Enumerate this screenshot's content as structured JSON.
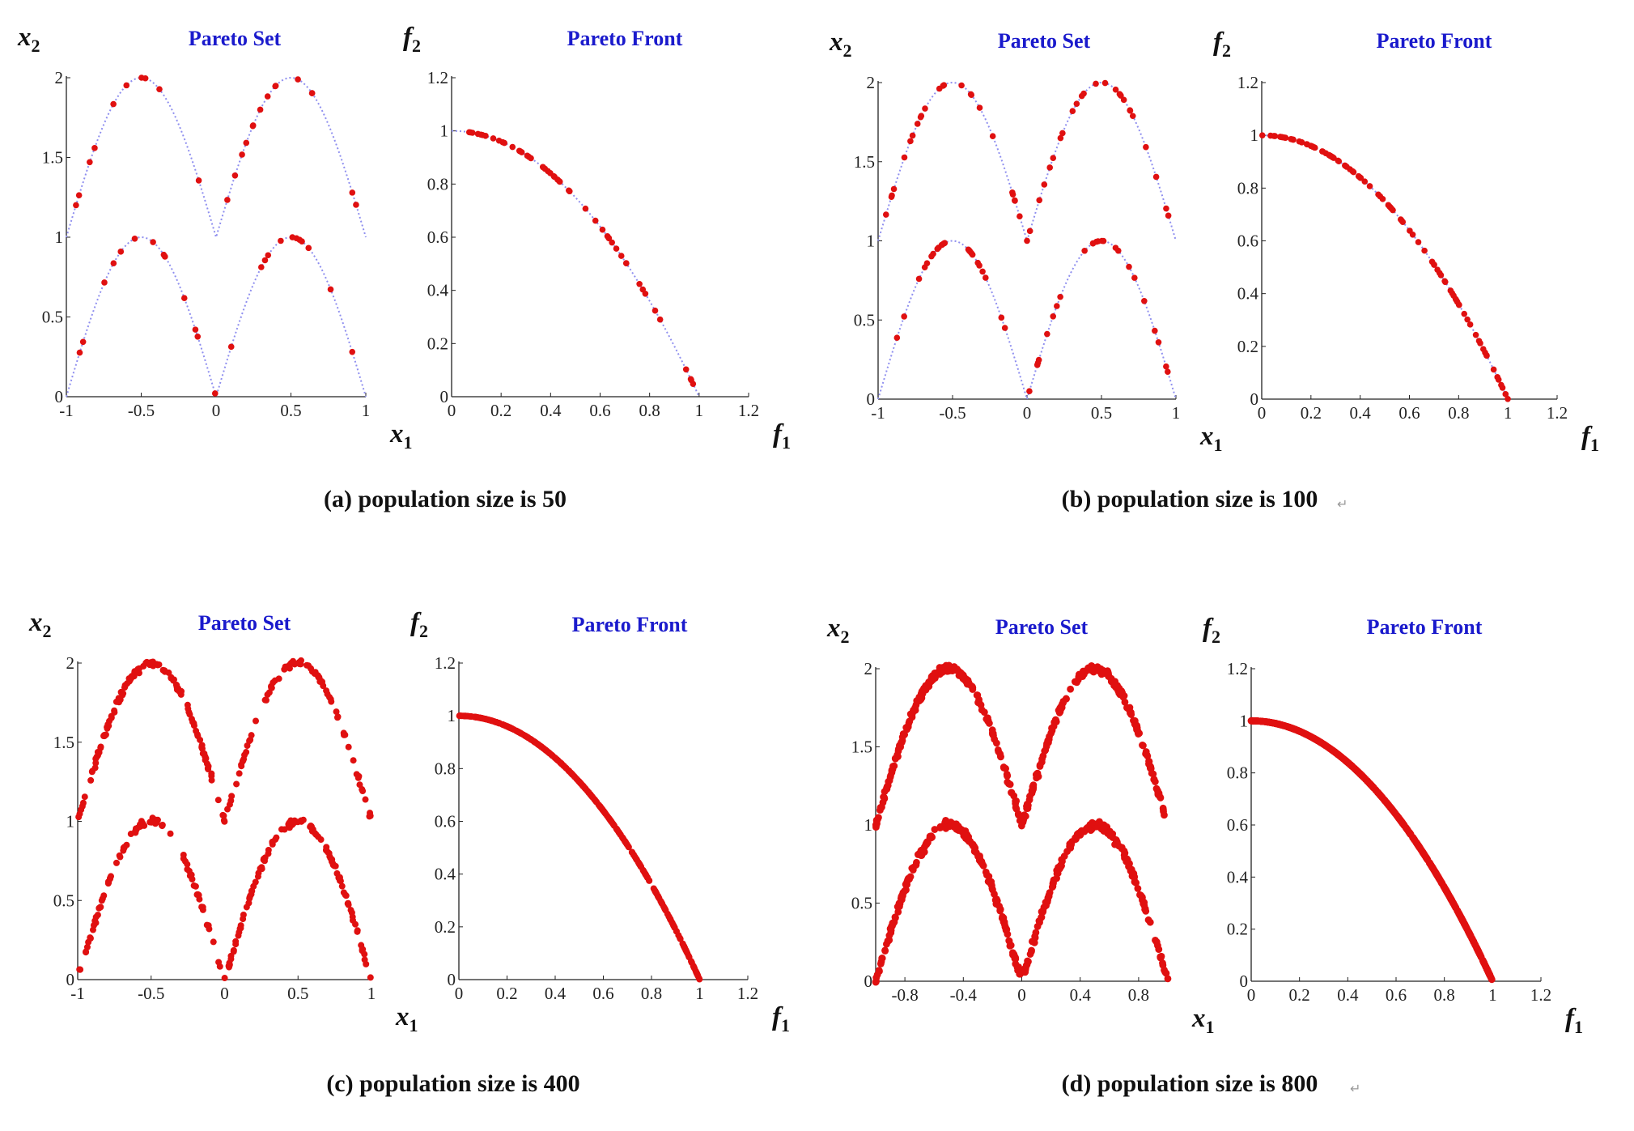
{
  "figure": {
    "captions": [
      "(a) population size is 50",
      "(b) population size is 100",
      "(c) population size is 400",
      "(d) population size is 800"
    ],
    "return_mark": "↵"
  },
  "colors": {
    "points": "#e01010",
    "curve": "#8f8fef",
    "title": "#1a1acc",
    "axis": "#222222",
    "tick_label": "#222222"
  },
  "chart_data": [
    {
      "panel": "a",
      "type": "scatter",
      "title": "Pareto Set",
      "ylabel_var": "x",
      "ylabel_sub": "2",
      "xlabel_var": "x",
      "xlabel_sub": "1",
      "xlim": [
        -1,
        1
      ],
      "ylim": [
        0,
        2
      ],
      "xticks": [
        -1,
        -0.5,
        0,
        0.5,
        1
      ],
      "xtick_labels": [
        "-1",
        "-0.5",
        "0",
        "0.5",
        "1"
      ],
      "yticks": [
        0,
        0.5,
        1,
        1.5,
        2
      ],
      "ytick_labels": [
        "0",
        "0.5",
        "1",
        "1.5",
        "2"
      ],
      "curve": "pareto_set",
      "generator": "pareto_set",
      "n_points": 50,
      "scatter": 0.0
    },
    {
      "panel": "a",
      "type": "scatter",
      "title": "Pareto Front",
      "ylabel_var": "f",
      "ylabel_sub": "2",
      "xlabel_var": "f",
      "xlabel_sub": "1",
      "xlim": [
        0,
        1.2
      ],
      "ylim": [
        0,
        1.2
      ],
      "xticks": [
        0,
        0.2,
        0.4,
        0.6,
        0.8,
        1,
        1.2
      ],
      "xtick_labels": [
        "0",
        "0.2",
        "0.4",
        "0.6",
        "0.8",
        "1",
        "1.2"
      ],
      "yticks": [
        0,
        0.2,
        0.4,
        0.6,
        0.8,
        1,
        1.2
      ],
      "ytick_labels": [
        "0",
        "0.2",
        "0.4",
        "0.6",
        "0.8",
        "1",
        "1.2"
      ],
      "curve": "pareto_front",
      "generator": "pareto_front",
      "n_points": 50,
      "scatter": 0.0
    },
    {
      "panel": "b",
      "type": "scatter",
      "title": "Pareto Set",
      "ylabel_var": "x",
      "ylabel_sub": "2",
      "xlabel_var": "x",
      "xlabel_sub": "1",
      "xlim": [
        -1,
        1
      ],
      "ylim": [
        0,
        2
      ],
      "xticks": [
        -1,
        -0.5,
        0,
        0.5,
        1
      ],
      "xtick_labels": [
        "-1",
        "-0.5",
        "0",
        "0.5",
        "1"
      ],
      "yticks": [
        0,
        0.5,
        1,
        1.5,
        2
      ],
      "ytick_labels": [
        "0",
        "0.5",
        "1",
        "1.5",
        "2"
      ],
      "curve": "pareto_set",
      "generator": "pareto_set",
      "n_points": 100,
      "scatter": 0.0
    },
    {
      "panel": "b",
      "type": "scatter",
      "title": "Pareto Front",
      "ylabel_var": "f",
      "ylabel_sub": "2",
      "xlabel_var": "f",
      "xlabel_sub": "1",
      "xlim": [
        0,
        1.2
      ],
      "ylim": [
        0,
        1.2
      ],
      "xticks": [
        0,
        0.2,
        0.4,
        0.6,
        0.8,
        1,
        1.2
      ],
      "xtick_labels": [
        "0",
        "0.2",
        "0.4",
        "0.6",
        "0.8",
        "1",
        "1.2"
      ],
      "yticks": [
        0,
        0.2,
        0.4,
        0.6,
        0.8,
        1,
        1.2
      ],
      "ytick_labels": [
        "0",
        "0.2",
        "0.4",
        "0.6",
        "0.8",
        "1",
        "1.2"
      ],
      "curve": "pareto_front",
      "generator": "pareto_front",
      "n_points": 100,
      "scatter": 0.0
    },
    {
      "panel": "c",
      "type": "scatter",
      "title": "Pareto Set",
      "ylabel_var": "x",
      "ylabel_sub": "2",
      "xlabel_var": "x",
      "xlabel_sub": "1",
      "xlim": [
        -1,
        1
      ],
      "ylim": [
        0,
        2
      ],
      "xticks": [
        -1,
        -0.5,
        0,
        0.5,
        1
      ],
      "xtick_labels": [
        "-1",
        "-0.5",
        "0",
        "0.5",
        "1"
      ],
      "yticks": [
        0,
        0.5,
        1,
        1.5,
        2
      ],
      "ytick_labels": [
        "0",
        "0.5",
        "1",
        "1.5",
        "2"
      ],
      "curve": null,
      "generator": "pareto_set",
      "n_points": 400,
      "scatter": 0.01
    },
    {
      "panel": "c",
      "type": "scatter",
      "title": "Pareto Front",
      "ylabel_var": "f",
      "ylabel_sub": "2",
      "xlabel_var": "f",
      "xlabel_sub": "1",
      "xlim": [
        0,
        1.2
      ],
      "ylim": [
        0,
        1.2
      ],
      "xticks": [
        0,
        0.2,
        0.4,
        0.6,
        0.8,
        1,
        1.2
      ],
      "xtick_labels": [
        "0",
        "0.2",
        "0.4",
        "0.6",
        "0.8",
        "1",
        "1.2"
      ],
      "yticks": [
        0,
        0.2,
        0.4,
        0.6,
        0.8,
        1,
        1.2
      ],
      "ytick_labels": [
        "0",
        "0.2",
        "0.4",
        "0.6",
        "0.8",
        "1",
        "1.2"
      ],
      "curve": null,
      "generator": "pareto_front",
      "n_points": 400,
      "scatter": 0.0
    },
    {
      "panel": "d",
      "type": "scatter",
      "title": "Pareto Set",
      "ylabel_var": "x",
      "ylabel_sub": "2",
      "xlabel_var": "x",
      "xlabel_sub": "1",
      "xlim": [
        -1,
        1
      ],
      "ylim": [
        0,
        2
      ],
      "xticks": [
        -0.8,
        -0.4,
        0,
        0.4,
        0.8
      ],
      "xtick_labels": [
        "-0.8",
        "-0.4",
        "0",
        "0.4",
        "0.8"
      ],
      "yticks": [
        0,
        0.5,
        1,
        1.5,
        2
      ],
      "ytick_labels": [
        "0",
        "0.5",
        "1",
        "1.5",
        "2"
      ],
      "curve": null,
      "generator": "pareto_set",
      "n_points": 800,
      "scatter": 0.012
    },
    {
      "panel": "d",
      "type": "scatter",
      "title": "Pareto Front",
      "ylabel_var": "f",
      "ylabel_sub": "2",
      "xlabel_var": "f",
      "xlabel_sub": "1",
      "xlim": [
        0,
        1.2
      ],
      "ylim": [
        0,
        1.2
      ],
      "xticks": [
        0,
        0.2,
        0.4,
        0.6,
        0.8,
        1,
        1.2
      ],
      "xtick_labels": [
        "0",
        "0.2",
        "0.4",
        "0.6",
        "0.8",
        "1",
        "1.2"
      ],
      "yticks": [
        0,
        0.2,
        0.4,
        0.6,
        0.8,
        1,
        1.2
      ],
      "ytick_labels": [
        "0",
        "0.2",
        "0.4",
        "0.6",
        "0.8",
        "1",
        "1.2"
      ],
      "curve": null,
      "generator": "pareto_front",
      "n_points": 800,
      "scatter": 0.0
    }
  ]
}
